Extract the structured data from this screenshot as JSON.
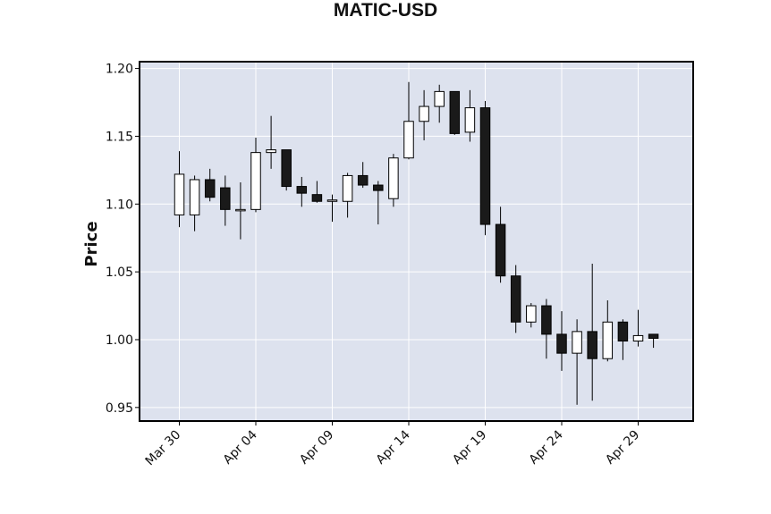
{
  "chart_data": {
    "type": "candlestick",
    "title": "MATIC-USD",
    "ylabel": "Price",
    "xlabel": "",
    "ylim": [
      0.94,
      1.205
    ],
    "yticks": [
      0.95,
      1.0,
      1.05,
      1.1,
      1.15,
      1.2
    ],
    "ytick_labels": [
      "0.95",
      "1.00",
      "1.05",
      "1.10",
      "1.15",
      "1.20"
    ],
    "xticks": [
      {
        "index": 0,
        "label": "Mar 30"
      },
      {
        "index": 5,
        "label": "Apr 04"
      },
      {
        "index": 10,
        "label": "Apr 09"
      },
      {
        "index": 15,
        "label": "Apr 14"
      },
      {
        "index": 20,
        "label": "Apr 19"
      },
      {
        "index": 25,
        "label": "Apr 24"
      },
      {
        "index": 30,
        "label": "Apr 29"
      }
    ],
    "grid": true,
    "colors": {
      "up": "#ffffff",
      "down": "#1a1a1a",
      "edge": "#000000",
      "plot_bg": "#dde2ee",
      "grid": "#ffffff"
    },
    "candles": [
      {
        "date": "Mar 30",
        "open": 1.092,
        "high": 1.139,
        "low": 1.083,
        "close": 1.122
      },
      {
        "date": "Mar 31",
        "open": 1.092,
        "high": 1.121,
        "low": 1.08,
        "close": 1.118
      },
      {
        "date": "Apr 01",
        "open": 1.118,
        "high": 1.126,
        "low": 1.102,
        "close": 1.105
      },
      {
        "date": "Apr 02",
        "open": 1.112,
        "high": 1.121,
        "low": 1.084,
        "close": 1.096
      },
      {
        "date": "Apr 03",
        "open": 1.096,
        "high": 1.116,
        "low": 1.074,
        "close": 1.096
      },
      {
        "date": "Apr 04",
        "open": 1.096,
        "high": 1.149,
        "low": 1.094,
        "close": 1.138
      },
      {
        "date": "Apr 05",
        "open": 1.138,
        "high": 1.165,
        "low": 1.126,
        "close": 1.14
      },
      {
        "date": "Apr 06",
        "open": 1.14,
        "high": 1.14,
        "low": 1.11,
        "close": 1.113
      },
      {
        "date": "Apr 07",
        "open": 1.113,
        "high": 1.12,
        "low": 1.098,
        "close": 1.108
      },
      {
        "date": "Apr 08",
        "open": 1.107,
        "high": 1.117,
        "low": 1.101,
        "close": 1.102
      },
      {
        "date": "Apr 09",
        "open": 1.102,
        "high": 1.107,
        "low": 1.087,
        "close": 1.103
      },
      {
        "date": "Apr 10",
        "open": 1.102,
        "high": 1.123,
        "low": 1.09,
        "close": 1.121
      },
      {
        "date": "Apr 11",
        "open": 1.121,
        "high": 1.131,
        "low": 1.112,
        "close": 1.114
      },
      {
        "date": "Apr 12",
        "open": 1.114,
        "high": 1.117,
        "low": 1.085,
        "close": 1.11
      },
      {
        "date": "Apr 13",
        "open": 1.104,
        "high": 1.137,
        "low": 1.098,
        "close": 1.134
      },
      {
        "date": "Apr 14",
        "open": 1.134,
        "high": 1.19,
        "low": 1.133,
        "close": 1.161
      },
      {
        "date": "Apr 15",
        "open": 1.161,
        "high": 1.184,
        "low": 1.147,
        "close": 1.172
      },
      {
        "date": "Apr 16",
        "open": 1.172,
        "high": 1.188,
        "low": 1.16,
        "close": 1.183
      },
      {
        "date": "Apr 17",
        "open": 1.183,
        "high": 1.183,
        "low": 1.151,
        "close": 1.152
      },
      {
        "date": "Apr 18",
        "open": 1.153,
        "high": 1.184,
        "low": 1.146,
        "close": 1.171
      },
      {
        "date": "Apr 19",
        "open": 1.171,
        "high": 1.176,
        "low": 1.077,
        "close": 1.085
      },
      {
        "date": "Apr 20",
        "open": 1.085,
        "high": 1.098,
        "low": 1.042,
        "close": 1.047
      },
      {
        "date": "Apr 21",
        "open": 1.047,
        "high": 1.055,
        "low": 1.005,
        "close": 1.013
      },
      {
        "date": "Apr 22",
        "open": 1.013,
        "high": 1.027,
        "low": 1.009,
        "close": 1.025
      },
      {
        "date": "Apr 23",
        "open": 1.025,
        "high": 1.03,
        "low": 0.986,
        "close": 1.004
      },
      {
        "date": "Apr 24",
        "open": 1.004,
        "high": 1.021,
        "low": 0.977,
        "close": 0.99
      },
      {
        "date": "Apr 25",
        "open": 0.99,
        "high": 1.015,
        "low": 0.952,
        "close": 1.006
      },
      {
        "date": "Apr 26",
        "open": 1.006,
        "high": 1.056,
        "low": 0.955,
        "close": 0.986
      },
      {
        "date": "Apr 27",
        "open": 0.986,
        "high": 1.029,
        "low": 0.984,
        "close": 1.013
      },
      {
        "date": "Apr 28",
        "open": 1.013,
        "high": 1.015,
        "low": 0.985,
        "close": 0.999
      },
      {
        "date": "Apr 29",
        "open": 0.999,
        "high": 1.022,
        "low": 0.995,
        "close": 1.003
      },
      {
        "date": "Apr 30",
        "open": 1.004,
        "high": 1.004,
        "low": 0.994,
        "close": 1.001
      }
    ]
  }
}
